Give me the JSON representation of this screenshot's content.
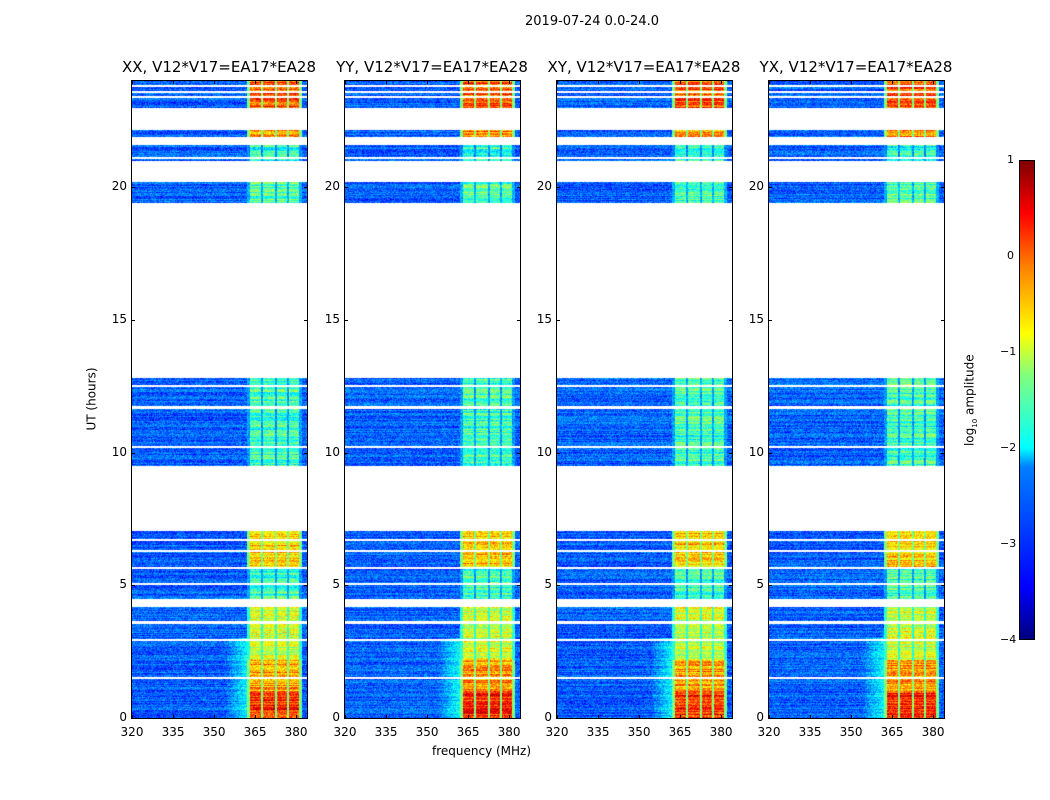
{
  "chart_data": {
    "type": "heatmap",
    "title": "2019-07-24 0.0-24.0",
    "xlabel": "frequency (MHz)",
    "ylabel": "UT (hours)",
    "xlim": [
      320,
      384
    ],
    "ylim": [
      0,
      24
    ],
    "xticks": [
      "320",
      "335",
      "350",
      "365",
      "380"
    ],
    "yticks": [
      "0",
      "5",
      "10",
      "15",
      "20"
    ],
    "panels": [
      {
        "title": "XX, V12*V17=EA17*EA28",
        "seed": 11
      },
      {
        "title": "YY, V12*V17=EA17*EA28",
        "seed": 23
      },
      {
        "title": "XY, V12*V17=EA17*EA28",
        "seed": 37
      },
      {
        "title": "YX, V12*V17=EA17*EA28",
        "seed": 51
      }
    ],
    "colorbar": {
      "label": "log10 amplitude",
      "label_main": "log",
      "label_sub": "10",
      "label_rest": " amplitude",
      "range": [
        -4,
        1
      ],
      "ticks": [
        "1",
        "0",
        "−1",
        "−2",
        "−3",
        "−4"
      ],
      "colormap": "jet"
    },
    "background_level": -2.9,
    "bands_mhz": [
      [
        363,
        367.3
      ],
      [
        368,
        372.2
      ],
      [
        373,
        376.6
      ],
      [
        377.4,
        381
      ]
    ],
    "segments_hours": [
      {
        "from": 0,
        "to": 1.0,
        "band_level": 0.2
      },
      {
        "from": 1.0,
        "to": 2.2,
        "band_level": -0.4
      },
      {
        "from": 2.2,
        "to": 4.2,
        "band_level": -1.1
      },
      {
        "from": 4.5,
        "to": 5.6,
        "band_level": -1.8
      },
      {
        "from": 5.7,
        "to": 7.05,
        "band_level": -0.6
      },
      {
        "from": 9.5,
        "to": 12.8,
        "band_level": -1.8
      },
      {
        "from": 19.4,
        "to": 20.2,
        "band_level": -1.7
      },
      {
        "from": 21.0,
        "to": 21.6,
        "band_level": -1.9
      },
      {
        "from": 21.9,
        "to": 22.15,
        "band_level": -0.3
      },
      {
        "from": 23.0,
        "to": 24.0,
        "band_level": 0.0
      }
    ],
    "flagged_lines_hours": [
      1.5,
      2.95,
      3.6,
      5.05,
      6.3,
      6.7,
      10.2,
      11.7,
      12.5,
      20.9,
      21.1,
      23.4,
      23.6,
      23.8
    ]
  }
}
